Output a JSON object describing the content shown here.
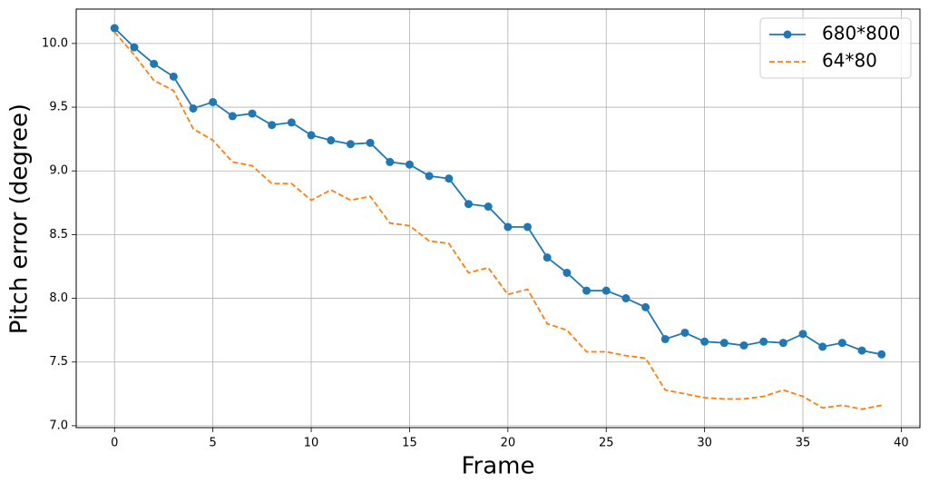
{
  "chart_data": {
    "type": "line",
    "xlabel": "Frame",
    "ylabel": "Pitch error (degree)",
    "x": [
      0,
      1,
      2,
      3,
      4,
      5,
      6,
      7,
      8,
      9,
      10,
      11,
      12,
      13,
      14,
      15,
      16,
      17,
      18,
      19,
      20,
      21,
      22,
      23,
      24,
      25,
      26,
      27,
      28,
      29,
      30,
      31,
      32,
      33,
      34,
      35,
      36,
      37,
      38,
      39
    ],
    "series": [
      {
        "name": "680*800",
        "color": "#1f77b4",
        "linestyle": "solid",
        "marker": "o",
        "values": [
          10.12,
          9.97,
          9.84,
          9.74,
          9.49,
          9.54,
          9.43,
          9.45,
          9.36,
          9.38,
          9.28,
          9.24,
          9.21,
          9.22,
          9.07,
          9.05,
          8.96,
          8.94,
          8.74,
          8.72,
          8.56,
          8.56,
          8.32,
          8.2,
          8.06,
          8.06,
          8.0,
          7.93,
          7.68,
          7.73,
          7.66,
          7.65,
          7.63,
          7.66,
          7.65,
          7.72,
          7.62,
          7.65,
          7.59,
          7.56
        ]
      },
      {
        "name": "64*80",
        "color": "#ff7f0e",
        "linestyle": "dashed",
        "marker": "none",
        "values": [
          10.09,
          9.91,
          9.71,
          9.63,
          9.33,
          9.24,
          9.07,
          9.04,
          8.9,
          8.9,
          8.77,
          8.85,
          8.77,
          8.8,
          8.59,
          8.57,
          8.45,
          8.43,
          8.2,
          8.24,
          8.03,
          8.07,
          7.8,
          7.75,
          7.58,
          7.58,
          7.55,
          7.53,
          7.28,
          7.25,
          7.22,
          7.21,
          7.21,
          7.23,
          7.28,
          7.23,
          7.14,
          7.16,
          7.13,
          7.16
        ]
      }
    ],
    "xlim": [
      -1.95,
      40.95
    ],
    "ylim": [
      6.985,
      10.27
    ],
    "xticks": [
      0,
      5,
      10,
      15,
      20,
      25,
      30,
      35,
      40
    ],
    "yticks": [
      {
        "value": 7,
        "label": "7.0"
      },
      7.5,
      {
        "value": 8,
        "label": "8.0"
      },
      8.5,
      {
        "value": 9,
        "label": "9.0"
      },
      9.5,
      {
        "value": 10,
        "label": "10.0"
      }
    ],
    "grid": true,
    "legend": "upper right"
  }
}
